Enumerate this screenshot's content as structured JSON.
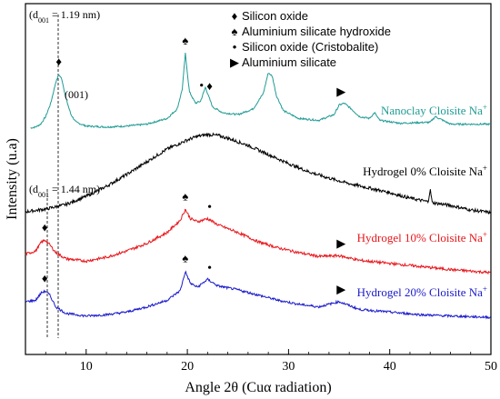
{
  "chart_data": {
    "type": "line",
    "xlabel": "Angle 2θ  (Cuα radiation)",
    "ylabel": "Intensity (u.a)",
    "xlim": [
      4,
      50
    ],
    "xticks": [
      10,
      20,
      30,
      40,
      50
    ],
    "grid": false,
    "colors": {
      "nanoclay": "#1f9b94",
      "hydrogel0": "#000000",
      "hydrogel10": "#e8161b",
      "hydrogel20": "#1a1acc"
    },
    "legend": {
      "placement": "top-center",
      "items": [
        {
          "symbol": "♦",
          "label": "Silicon oxide"
        },
        {
          "symbol": "♠",
          "label": "Aluminium silicate hydroxide"
        },
        {
          "symbol": "•",
          "label": "Silicon oxide (Cristobalite)"
        },
        {
          "symbol": "▶",
          "label": "Aluminium silicate"
        }
      ]
    },
    "series": [
      {
        "name": "Nanoclay Cloisite Na+",
        "key": "nanoclay",
        "x": [
          4.5,
          5,
          5.5,
          6,
          6.5,
          7,
          7.3,
          7.6,
          8,
          8.5,
          9,
          10,
          12,
          14,
          16,
          18,
          19,
          19.5,
          19.8,
          20.2,
          20.8,
          21.3,
          21.8,
          22,
          22.5,
          23.5,
          25,
          26.5,
          27.5,
          28,
          28.4,
          28.8,
          29.5,
          31,
          33,
          34.5,
          35,
          35.5,
          36.2,
          37,
          38,
          38.5,
          39,
          41,
          44,
          44.5,
          46,
          50
        ],
        "y": [
          0.04,
          0.05,
          0.08,
          0.16,
          0.3,
          0.52,
          0.6,
          0.55,
          0.35,
          0.18,
          0.1,
          0.06,
          0.05,
          0.06,
          0.08,
          0.14,
          0.24,
          0.45,
          0.82,
          0.42,
          0.3,
          0.32,
          0.47,
          0.4,
          0.26,
          0.2,
          0.18,
          0.24,
          0.4,
          0.62,
          0.58,
          0.38,
          0.22,
          0.14,
          0.12,
          0.18,
          0.28,
          0.3,
          0.24,
          0.16,
          0.14,
          0.2,
          0.12,
          0.09,
          0.1,
          0.16,
          0.08,
          0.08
        ]
      },
      {
        "name": "Hydrogel   0% Cloisite Na+",
        "key": "hydrogel0",
        "x": [
          4,
          6,
          8,
          10,
          12,
          14,
          16,
          18,
          20,
          21,
          22,
          23,
          24,
          26,
          28,
          30,
          32,
          34,
          36,
          38,
          40,
          42,
          43.8,
          44,
          44.2,
          46,
          48,
          50
        ],
        "y": [
          0.05,
          0.08,
          0.13,
          0.22,
          0.33,
          0.46,
          0.6,
          0.74,
          0.84,
          0.88,
          0.9,
          0.89,
          0.86,
          0.78,
          0.68,
          0.58,
          0.49,
          0.42,
          0.36,
          0.31,
          0.26,
          0.2,
          0.16,
          0.3,
          0.15,
          0.12,
          0.07,
          0.04
        ]
      },
      {
        "name": "Hydrogel 10% Cloisite Na+",
        "key": "hydrogel10",
        "x": [
          4,
          5,
          5.6,
          6,
          6.4,
          7,
          8,
          10,
          12,
          14,
          16,
          18,
          19.3,
          19.8,
          20.3,
          21,
          22,
          23,
          25,
          27,
          29,
          31,
          33,
          35,
          37,
          40,
          43,
          46,
          50
        ],
        "y": [
          0.24,
          0.28,
          0.4,
          0.42,
          0.36,
          0.26,
          0.18,
          0.15,
          0.2,
          0.28,
          0.38,
          0.52,
          0.68,
          0.82,
          0.7,
          0.66,
          0.7,
          0.62,
          0.52,
          0.4,
          0.32,
          0.26,
          0.21,
          0.22,
          0.16,
          0.12,
          0.08,
          0.04,
          0.0
        ]
      },
      {
        "name": "Hydrogel 20% Cloisite Na+",
        "key": "hydrogel20",
        "x": [
          4,
          5,
          5.6,
          6,
          6.4,
          7,
          8,
          10,
          12,
          14,
          16,
          18,
          19.3,
          19.8,
          20.3,
          21,
          22,
          23,
          25,
          27,
          29,
          31,
          33,
          35,
          37,
          40,
          43,
          46,
          50
        ],
        "y": [
          0.28,
          0.3,
          0.42,
          0.44,
          0.38,
          0.2,
          0.1,
          0.06,
          0.08,
          0.12,
          0.2,
          0.3,
          0.45,
          0.74,
          0.56,
          0.5,
          0.62,
          0.52,
          0.46,
          0.38,
          0.3,
          0.24,
          0.2,
          0.28,
          0.16,
          0.12,
          0.08,
          0.06,
          0.04
        ]
      }
    ],
    "annotations": {
      "d001_top": "(d",
      "d001_top_sub": "001",
      "d001_top_rest": " = 1.19 nm)",
      "d001_mid": "(d",
      "d001_mid_sub": "001",
      "d001_mid_rest": " = 1.44 nm)",
      "peak_001": "(001)",
      "series_labels": [
        {
          "text": "Nanoclay Cloisite Na",
          "sup": "+",
          "key": "nanoclay"
        },
        {
          "text": "Hydrogel   0% Cloisite Na",
          "sup": "+",
          "key": "hydrogel0"
        },
        {
          "text": "Hydrogel 10% Cloisite Na",
          "sup": "+",
          "key": "hydrogel10"
        },
        {
          "text": "Hydrogel 20% Cloisite Na",
          "sup": "+",
          "key": "hydrogel20"
        }
      ],
      "markers": [
        {
          "symbol": "♦",
          "x": 7.3,
          "series": "nanoclay"
        },
        {
          "symbol": "♠",
          "x": 19.8,
          "series": "nanoclay"
        },
        {
          "symbol": "•",
          "x": 21.4,
          "series": "nanoclay"
        },
        {
          "symbol": "♦",
          "x": 22.2,
          "series": "nanoclay"
        },
        {
          "symbol": "▶",
          "x": 35.2,
          "series": "nanoclay"
        },
        {
          "symbol": "♠",
          "x": 19.8,
          "series": "hydrogel10"
        },
        {
          "symbol": "•",
          "x": 22.2,
          "series": "hydrogel10"
        },
        {
          "symbol": "♦",
          "x": 5.9,
          "series": "hydrogel10"
        },
        {
          "symbol": "▶",
          "x": 35.2,
          "series": "hydrogel10"
        },
        {
          "symbol": "♠",
          "x": 19.8,
          "series": "hydrogel20"
        },
        {
          "symbol": "•",
          "x": 22.2,
          "series": "hydrogel20"
        },
        {
          "symbol": "♦",
          "x": 5.9,
          "series": "hydrogel20"
        },
        {
          "symbol": "▶",
          "x": 35.2,
          "series": "hydrogel20"
        }
      ]
    }
  }
}
